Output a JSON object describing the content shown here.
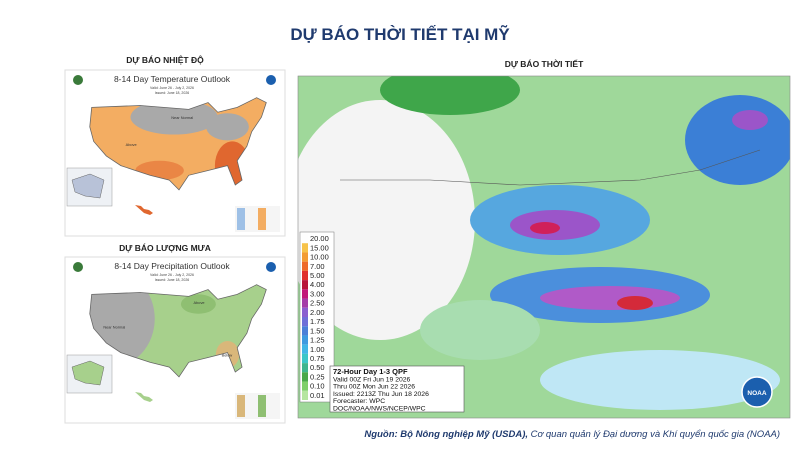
{
  "title": "DỰ BÁO THỜI TIẾT TẠI MỸ",
  "temperature": {
    "heading": "DỰ BÁO NHIỆT ĐỘ",
    "map_title": "8-14 Day Temperature Outlook",
    "valid": "Valid: June 26 - July 2, 2026",
    "issued": "Issued: June 18, 2026",
    "labels": [
      "Near Normal",
      "Above"
    ]
  },
  "precipitation": {
    "heading": "DỰ BÁO LƯỢNG MƯA",
    "map_title": "8-14 Day Precipitation Outlook",
    "valid": "Valid: June 26 - July 2, 2026",
    "issued": "Issued: June 18, 2026",
    "labels": [
      "Near Normal",
      "Above",
      "Below"
    ]
  },
  "qpf": {
    "heading": "DỰ BÁO THỜI TIẾT",
    "legend": [
      "20.00",
      "15.00",
      "10.00",
      "7.00",
      "5.00",
      "4.00",
      "3.00",
      "2.50",
      "2.00",
      "1.75",
      "1.50",
      "1.25",
      "1.00",
      "0.75",
      "0.50",
      "0.25",
      "0.10",
      "0.01"
    ],
    "info": [
      "72-Hour Day 1-3 QPF",
      "Valid 00Z Fri Jun 19 2026",
      "Thru 00Z Mon Jun 22 2026",
      "Issued: 2213Z Thu Jun 18 2026",
      "Forecaster: WPC",
      "DOC/NOAA/NWS/NCEP/WPC"
    ],
    "logo": "NOAA"
  },
  "source": {
    "bold": "Nguồn: Bộ Nông nghiệp Mỹ (USDA),",
    "rest": " Cơ quan quản lý Đại dương và Khí quyển quốc gia (NOAA)"
  }
}
